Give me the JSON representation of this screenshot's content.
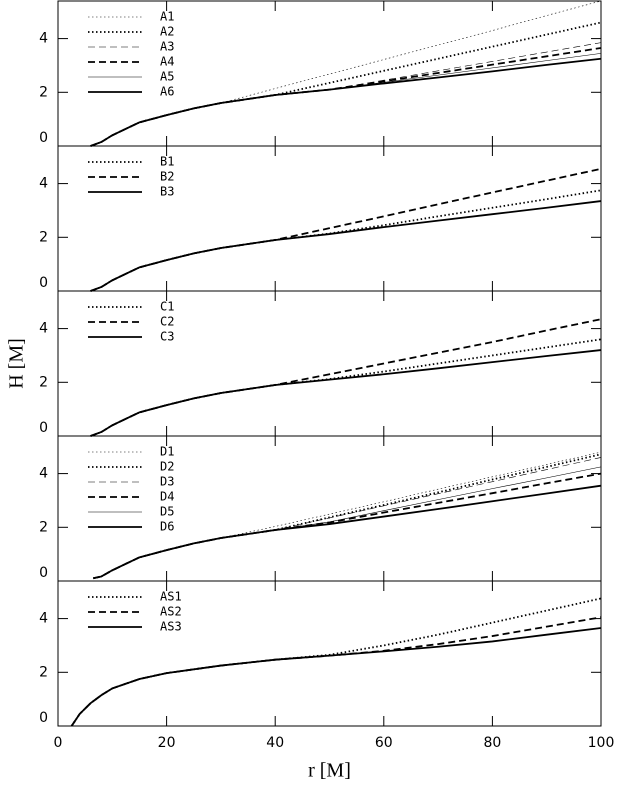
{
  "chart_data": [
    {
      "type": "line",
      "xlim": [
        0,
        100
      ],
      "ylim": [
        0,
        5.4
      ],
      "xticks": [
        0,
        20,
        40,
        60,
        80,
        100
      ],
      "yticks": [
        0,
        2,
        4
      ],
      "x": [
        6,
        8,
        10,
        15,
        20,
        25,
        30,
        40,
        50,
        60,
        70,
        80,
        90,
        100
      ],
      "series": [
        {
          "name": "A1",
          "color": "#000000",
          "dash": "dotted",
          "width": 0.6,
          "values": [
            0,
            0.15,
            0.4,
            0.88,
            1.15,
            1.4,
            1.6,
            2.14,
            2.68,
            3.22,
            3.76,
            4.3,
            4.86,
            5.4
          ]
        },
        {
          "name": "A2",
          "color": "#000000",
          "dash": "dotted",
          "width": 1.8,
          "values": [
            0,
            0.15,
            0.4,
            0.88,
            1.15,
            1.4,
            1.6,
            1.9,
            2.35,
            2.8,
            3.25,
            3.7,
            4.15,
            4.6
          ]
        },
        {
          "name": "A3",
          "color": "#000000",
          "dash": "dashed",
          "width": 0.6,
          "values": [
            0,
            0.15,
            0.4,
            0.88,
            1.15,
            1.4,
            1.6,
            1.9,
            2.1,
            2.45,
            2.8,
            3.15,
            3.5,
            3.85
          ]
        },
        {
          "name": "A4",
          "color": "#000000",
          "dash": "dashed",
          "width": 1.8,
          "values": [
            0,
            0.15,
            0.4,
            0.88,
            1.15,
            1.4,
            1.6,
            1.9,
            2.1,
            2.41,
            2.72,
            3.03,
            3.34,
            3.65
          ]
        },
        {
          "name": "A5",
          "color": "#000000",
          "dash": "solid",
          "width": 0.6,
          "values": [
            0,
            0.15,
            0.4,
            0.88,
            1.15,
            1.4,
            1.6,
            1.9,
            2.1,
            2.37,
            2.64,
            2.91,
            3.18,
            3.45
          ]
        },
        {
          "name": "A6",
          "color": "#000000",
          "dash": "solid",
          "width": 1.8,
          "values": [
            0,
            0.15,
            0.4,
            0.88,
            1.15,
            1.4,
            1.6,
            1.9,
            2.1,
            2.33,
            2.55,
            2.78,
            3.02,
            3.25
          ]
        }
      ]
    },
    {
      "type": "line",
      "xlim": [
        0,
        100
      ],
      "ylim": [
        0,
        5.4
      ],
      "xticks": [
        0,
        20,
        40,
        60,
        80,
        100
      ],
      "yticks": [
        0,
        2,
        4
      ],
      "x": [
        6,
        8,
        10,
        15,
        20,
        25,
        30,
        40,
        50,
        60,
        70,
        80,
        90,
        100
      ],
      "series": [
        {
          "name": "B1",
          "color": "#000000",
          "dash": "dotted",
          "width": 1.8,
          "values": [
            0,
            0.15,
            0.4,
            0.88,
            1.15,
            1.4,
            1.6,
            1.9,
            2.14,
            2.45,
            2.78,
            3.1,
            3.42,
            3.75
          ]
        },
        {
          "name": "B2",
          "color": "#000000",
          "dash": "dashed",
          "width": 1.8,
          "values": [
            0,
            0.15,
            0.4,
            0.88,
            1.15,
            1.4,
            1.6,
            1.9,
            2.34,
            2.78,
            3.23,
            3.67,
            4.11,
            4.55
          ]
        },
        {
          "name": "B3",
          "color": "#000000",
          "dash": "solid",
          "width": 1.8,
          "values": [
            0,
            0.15,
            0.4,
            0.88,
            1.15,
            1.4,
            1.6,
            1.9,
            2.12,
            2.38,
            2.62,
            2.86,
            3.1,
            3.35
          ]
        }
      ]
    },
    {
      "type": "line",
      "xlim": [
        0,
        100
      ],
      "ylim": [
        0,
        5.4
      ],
      "xticks": [
        0,
        20,
        40,
        60,
        80,
        100
      ],
      "yticks": [
        0,
        2,
        4
      ],
      "ylabel": "H  [M]",
      "x": [
        6,
        8,
        10,
        15,
        20,
        25,
        30,
        40,
        50,
        60,
        70,
        80,
        90,
        100
      ],
      "series": [
        {
          "name": "C1",
          "color": "#000000",
          "dash": "dotted",
          "width": 1.8,
          "values": [
            0,
            0.15,
            0.4,
            0.88,
            1.15,
            1.4,
            1.6,
            1.9,
            2.12,
            2.4,
            2.7,
            3.0,
            3.3,
            3.6
          ]
        },
        {
          "name": "C2",
          "color": "#000000",
          "dash": "dashed",
          "width": 1.8,
          "values": [
            0,
            0.15,
            0.4,
            0.88,
            1.15,
            1.4,
            1.6,
            1.9,
            2.3,
            2.7,
            3.1,
            3.5,
            3.93,
            4.35
          ]
        },
        {
          "name": "C3",
          "color": "#000000",
          "dash": "solid",
          "width": 1.8,
          "values": [
            0,
            0.15,
            0.4,
            0.88,
            1.15,
            1.4,
            1.6,
            1.9,
            2.1,
            2.3,
            2.52,
            2.75,
            2.98,
            3.2
          ]
        }
      ]
    },
    {
      "type": "line",
      "xlim": [
        0,
        100
      ],
      "ylim": [
        0,
        5.4
      ],
      "xticks": [
        0,
        20,
        40,
        60,
        80,
        100
      ],
      "yticks": [
        0,
        2,
        4
      ],
      "x": [
        6.5,
        8,
        10,
        15,
        20,
        25,
        30,
        40,
        50,
        60,
        70,
        80,
        90,
        100
      ],
      "series": [
        {
          "name": "D1",
          "color": "#000000",
          "dash": "dotted",
          "width": 0.6,
          "values": [
            0.1,
            0.17,
            0.4,
            0.88,
            1.15,
            1.4,
            1.6,
            2.03,
            2.49,
            2.95,
            3.42,
            3.88,
            4.34,
            4.8
          ]
        },
        {
          "name": "D2",
          "color": "#000000",
          "dash": "dotted",
          "width": 1.8,
          "values": [
            0.1,
            0.17,
            0.4,
            0.88,
            1.15,
            1.4,
            1.6,
            1.9,
            2.37,
            2.83,
            3.3,
            3.78,
            4.25,
            4.72
          ]
        },
        {
          "name": "D3",
          "color": "#000000",
          "dash": "dashed",
          "width": 0.6,
          "values": [
            0.1,
            0.17,
            0.4,
            0.88,
            1.15,
            1.4,
            1.6,
            1.9,
            2.35,
            2.8,
            3.25,
            3.7,
            4.15,
            4.6
          ]
        },
        {
          "name": "D4",
          "color": "#000000",
          "dash": "dashed",
          "width": 1.8,
          "values": [
            0.1,
            0.17,
            0.4,
            0.88,
            1.15,
            1.4,
            1.6,
            1.9,
            2.18,
            2.55,
            2.91,
            3.27,
            3.64,
            4.0
          ]
        },
        {
          "name": "D5",
          "color": "#000000",
          "dash": "solid",
          "width": 0.6,
          "values": [
            0.1,
            0.17,
            0.4,
            0.88,
            1.15,
            1.4,
            1.6,
            1.9,
            2.2,
            2.62,
            3.03,
            3.44,
            3.84,
            4.25
          ]
        },
        {
          "name": "D6",
          "color": "#000000",
          "dash": "solid",
          "width": 1.8,
          "values": [
            0.1,
            0.17,
            0.4,
            0.88,
            1.15,
            1.4,
            1.6,
            1.9,
            2.12,
            2.4,
            2.68,
            2.97,
            3.26,
            3.55
          ]
        }
      ]
    },
    {
      "type": "line",
      "xlim": [
        0,
        100
      ],
      "ylim": [
        0,
        5.4
      ],
      "xticks": [
        0,
        20,
        40,
        60,
        80,
        100
      ],
      "yticks": [
        0,
        2,
        4
      ],
      "xlabel": "r  [M]",
      "x": [
        2.5,
        4,
        6,
        8,
        10,
        15,
        20,
        30,
        40,
        50,
        60,
        70,
        80,
        90,
        100
      ],
      "series": [
        {
          "name": "AS1",
          "color": "#000000",
          "dash": "dotted",
          "width": 1.8,
          "values": [
            0,
            0.45,
            0.85,
            1.15,
            1.4,
            1.75,
            1.97,
            2.25,
            2.47,
            2.65,
            3.0,
            3.4,
            3.85,
            4.3,
            4.75
          ]
        },
        {
          "name": "AS2",
          "color": "#000000",
          "dash": "dashed",
          "width": 1.8,
          "values": [
            0,
            0.45,
            0.85,
            1.15,
            1.4,
            1.75,
            1.97,
            2.25,
            2.47,
            2.62,
            2.8,
            3.05,
            3.35,
            3.7,
            4.05
          ]
        },
        {
          "name": "AS3",
          "color": "#000000",
          "dash": "solid",
          "width": 1.8,
          "values": [
            0,
            0.45,
            0.85,
            1.15,
            1.4,
            1.75,
            1.97,
            2.25,
            2.47,
            2.62,
            2.78,
            2.95,
            3.15,
            3.4,
            3.65
          ]
        }
      ]
    }
  ]
}
